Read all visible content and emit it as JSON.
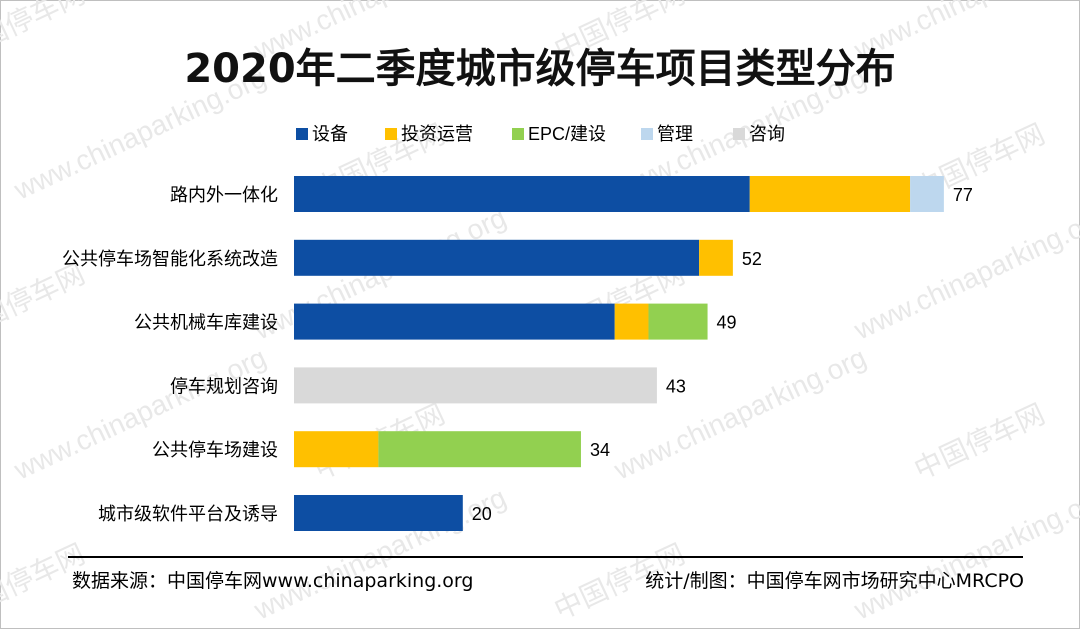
{
  "title": "2020年二季度城市级停车项目类型分布",
  "watermark": {
    "url": "www.chinaparking.org",
    "cn": "中国停车网"
  },
  "footer": {
    "source": "数据来源：中国停车网www.chinaparking.org",
    "credit": "统计/制图：中国停车网市场研究中心MRCPO"
  },
  "chart_data": {
    "type": "bar",
    "orientation": "horizontal",
    "stacked": true,
    "categories": [
      "路内外一体化",
      "公共停车场智能化系统改造",
      "公共机械车库建设",
      "停车规划咨询",
      "公共停车场建设",
      "城市级软件平台及诱导"
    ],
    "series": [
      {
        "name": "设备",
        "color": "#0d4ea3",
        "values": [
          54,
          48,
          38,
          0,
          0,
          20
        ]
      },
      {
        "name": "投资运营",
        "color": "#ffc000",
        "values": [
          19,
          4,
          4,
          0,
          10,
          0
        ]
      },
      {
        "name": "EPC/建设",
        "color": "#92d050",
        "values": [
          0,
          0,
          7,
          0,
          24,
          0
        ]
      },
      {
        "name": "管理",
        "color": "#bdd7ee",
        "values": [
          4,
          0,
          0,
          0,
          0,
          0
        ]
      },
      {
        "name": "咨询",
        "color": "#d9d9d9",
        "values": [
          0,
          0,
          0,
          43,
          0,
          0
        ]
      }
    ],
    "totals": [
      77,
      52,
      49,
      43,
      34,
      20
    ],
    "legend_position": "top",
    "grid": false
  }
}
